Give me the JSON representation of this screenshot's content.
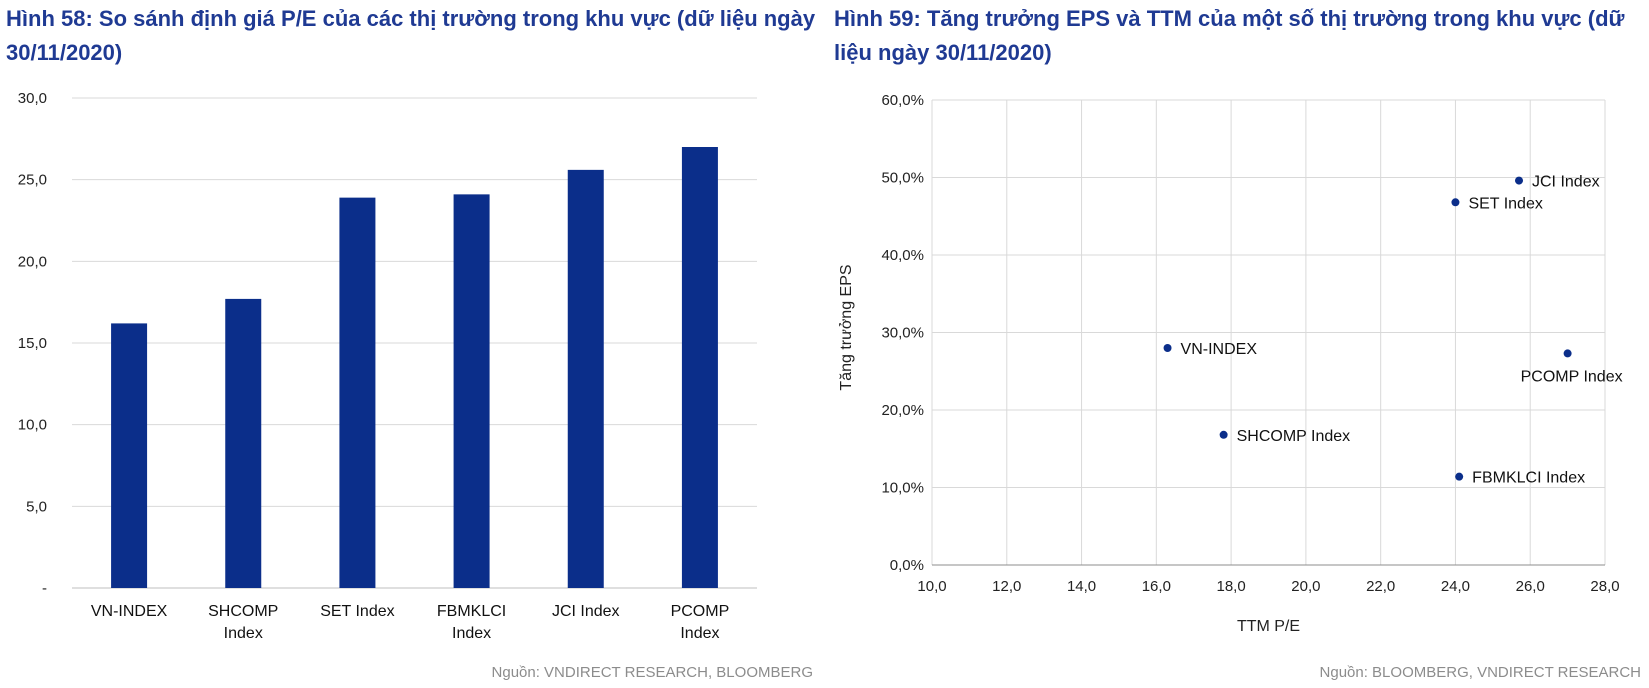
{
  "chart_data": [
    {
      "type": "bar",
      "title": "Hình 58: So sánh định giá P/E của các thị trường trong khu vực (dữ liệu ngày 30/11/2020)",
      "source": "Nguồn: VNDIRECT RESEARCH, BLOOMBERG",
      "categories": [
        [
          "VN-INDEX"
        ],
        [
          "SHCOMP",
          "Index"
        ],
        [
          "SET Index"
        ],
        [
          "FBMKLCI",
          "Index"
        ],
        [
          "JCI Index"
        ],
        [
          "PCOMP",
          "Index"
        ]
      ],
      "values": [
        16.2,
        17.7,
        23.9,
        24.1,
        25.6,
        27.0
      ],
      "ylim": [
        0,
        30
      ],
      "yticks": [
        "-",
        "5,0",
        "10,0",
        "15,0",
        "20,0",
        "25,0",
        "30,0"
      ],
      "xlabel": "",
      "ylabel": "",
      "grid": true,
      "color": "#0b2e8a"
    },
    {
      "type": "scatter",
      "title": "Hình 59: Tăng trưởng EPS và TTM của một số thị trường trong khu vực (dữ liệu ngày 30/11/2020)",
      "source": "Nguồn: BLOOMBERG, VNDIRECT RESEARCH",
      "xlabel": "TTM P/E",
      "ylabel": "Tăng trưởng EPS",
      "xlim": [
        10,
        28
      ],
      "ylim": [
        0,
        60
      ],
      "xticks": [
        "10,0",
        "12,0",
        "14,0",
        "16,0",
        "18,0",
        "20,0",
        "22,0",
        "24,0",
        "26,0",
        "28,0"
      ],
      "yticks": [
        "0,0%",
        "10,0%",
        "20,0%",
        "30,0%",
        "40,0%",
        "50,0%",
        "60,0%"
      ],
      "grid": true,
      "color": "#0b2e8a",
      "points": [
        {
          "label": "VN-INDEX",
          "x": 16.3,
          "y": 28.0
        },
        {
          "label": "SHCOMP Index",
          "x": 17.8,
          "y": 16.8
        },
        {
          "label": "SET Index",
          "x": 24.0,
          "y": 46.8
        },
        {
          "label": "FBMKLCI Index",
          "x": 24.1,
          "y": 11.4
        },
        {
          "label": "JCI Index",
          "x": 25.7,
          "y": 49.6
        },
        {
          "label": "PCOMP Index",
          "x": 27.0,
          "y": 27.3
        }
      ]
    }
  ]
}
